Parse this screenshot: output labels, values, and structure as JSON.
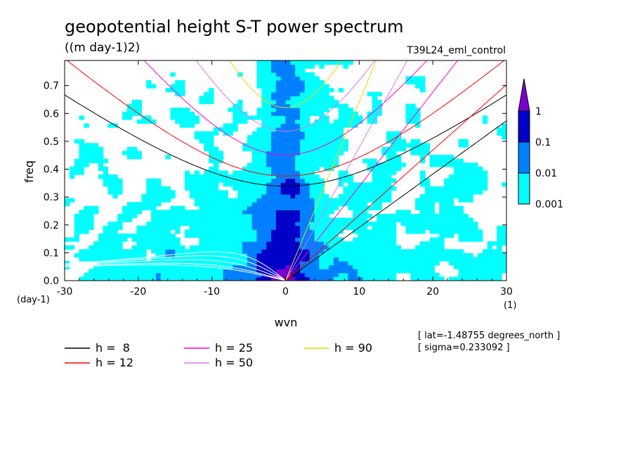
{
  "title": "geopotential height S-T power spectrum",
  "units": "((m day-1)2)",
  "experiment": "T39L24_eml_control",
  "info": {
    "lat": "[ lat=-1.48755 degrees_north ]",
    "sigma": "[ sigma=0.233092 ]"
  },
  "colors": {
    "level_1": "#00ffff",
    "level_2": "#0080ff",
    "level_3": "#0000c8",
    "level_4": "#7a00d0",
    "background": "#ffffff"
  },
  "chart_data": {
    "type": "heatmap",
    "xlabel": "wvn",
    "ylabel": "freq",
    "x_unit_label": "(1)",
    "y_unit_label": "(day-1)",
    "xlim": [
      -30,
      30
    ],
    "ylim": [
      0,
      0.79
    ],
    "x_ticks": [
      -30,
      -20,
      -10,
      0,
      10,
      20,
      30
    ],
    "x_tick_labels": [
      "-30",
      "-20",
      "-10",
      "0",
      "10",
      "20",
      "30"
    ],
    "y_ticks": [
      0.0,
      0.1,
      0.2,
      0.3,
      0.4,
      0.5,
      0.6,
      0.7
    ],
    "y_tick_labels": [
      "0.0",
      "0.1",
      "0.2",
      "0.3",
      "0.4",
      "0.5",
      "0.6",
      "0.7"
    ],
    "contour_levels": [
      0.001,
      0.01,
      0.1,
      1
    ],
    "colorbar_labels": [
      "1",
      "0.1",
      "0.01",
      "0.001"
    ],
    "dispersion_curves": [
      {
        "label": "h =  8",
        "h": 8,
        "color": "#000000"
      },
      {
        "label": "h = 12",
        "h": 12,
        "color": "#ff0000"
      },
      {
        "label": "h = 25",
        "h": 25,
        "color": "#ff00cc"
      },
      {
        "label": "h = 50",
        "h": 50,
        "color": "#dd77ee"
      },
      {
        "label": "h = 90",
        "h": 90,
        "color": "#e8d800"
      }
    ],
    "lower_curve_color": "#ffffff",
    "grid": false,
    "legend_position": "bottom-left"
  }
}
